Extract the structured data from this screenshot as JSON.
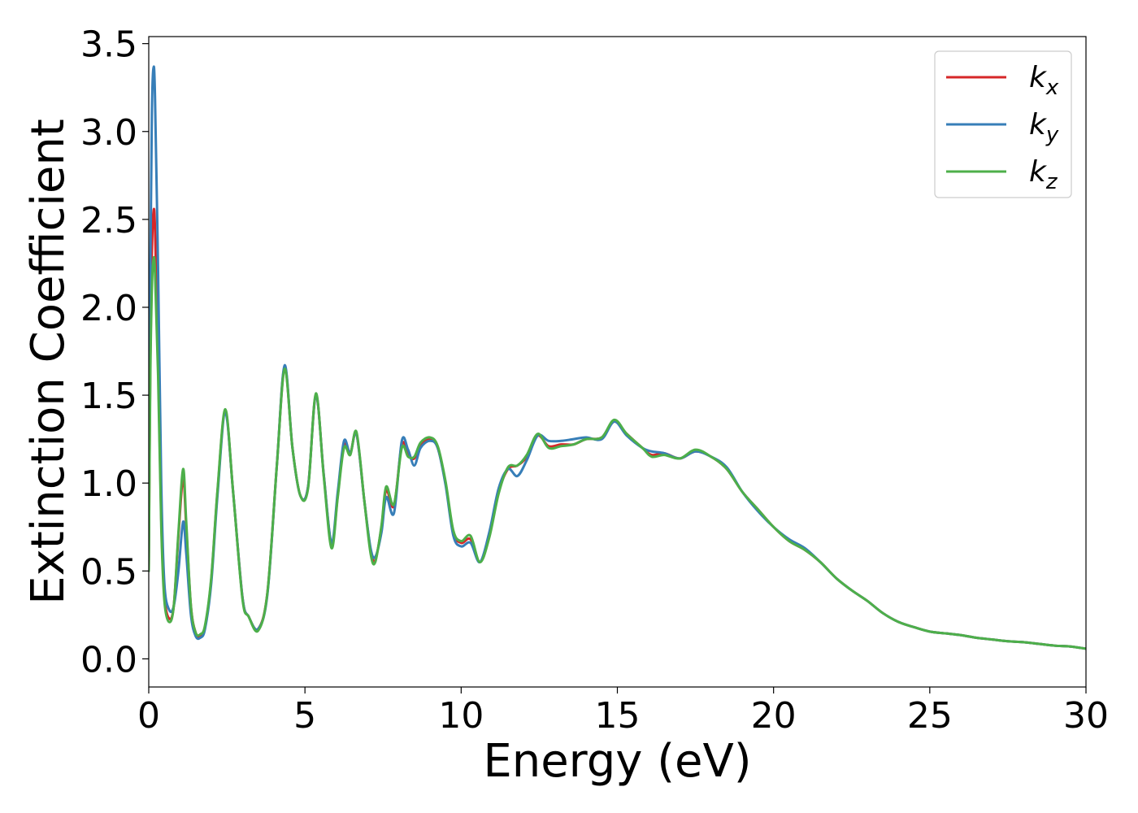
{
  "chart_data": {
    "type": "line",
    "title": "",
    "xlabel": "Energy (eV)",
    "ylabel": "Extinction Coefficient",
    "xlim": [
      0,
      30
    ],
    "ylim": [
      -0.16,
      3.54
    ],
    "xticks": [
      0,
      5,
      10,
      15,
      20,
      25,
      30
    ],
    "xtick_labels": [
      "0",
      "5",
      "10",
      "15",
      "20",
      "25",
      "30"
    ],
    "yticks": [
      0.0,
      0.5,
      1.0,
      1.5,
      2.0,
      2.5,
      3.0,
      3.5
    ],
    "ytick_labels": [
      "0.0",
      "0.5",
      "1.0",
      "1.5",
      "2.0",
      "2.5",
      "3.0",
      "3.5"
    ],
    "grid": false,
    "legend_position": "top-right",
    "x": [
      0.0,
      0.05,
      0.1,
      0.15,
      0.2,
      0.3,
      0.4,
      0.5,
      0.65,
      0.8,
      0.95,
      1.1,
      1.2,
      1.35,
      1.5,
      1.65,
      1.8,
      2.0,
      2.2,
      2.45,
      2.7,
      3.0,
      3.2,
      3.5,
      3.8,
      4.1,
      4.35,
      4.6,
      4.85,
      5.1,
      5.35,
      5.6,
      5.85,
      6.05,
      6.25,
      6.45,
      6.65,
      6.9,
      7.1,
      7.25,
      7.45,
      7.6,
      7.85,
      8.1,
      8.3,
      8.5,
      8.7,
      9.0,
      9.25,
      9.5,
      9.75,
      10.0,
      10.3,
      10.6,
      10.9,
      11.2,
      11.5,
      11.8,
      12.1,
      12.45,
      12.8,
      13.2,
      13.6,
      14.0,
      14.5,
      14.9,
      15.3,
      15.8,
      16.1,
      16.5,
      17.0,
      17.5,
      18.0,
      18.5,
      19.0,
      19.5,
      20.0,
      20.5,
      21.0,
      21.5,
      22.0,
      22.5,
      23.0,
      23.5,
      24.0,
      24.5,
      25.0,
      25.5,
      26.0,
      26.5,
      27.0,
      27.5,
      28.0,
      28.5,
      29.0,
      29.5,
      30.0
    ],
    "series": [
      {
        "name": "k_x",
        "label_main": "k",
        "label_sub": "x",
        "color": "#d62728",
        "values": [
          0.5,
          1.7,
          2.3,
          2.54,
          2.45,
          1.7,
          0.8,
          0.36,
          0.23,
          0.3,
          0.7,
          1.03,
          0.75,
          0.3,
          0.15,
          0.13,
          0.18,
          0.45,
          0.95,
          1.41,
          0.95,
          0.35,
          0.24,
          0.17,
          0.38,
          1.1,
          1.66,
          1.2,
          0.93,
          0.98,
          1.5,
          1.05,
          0.65,
          0.93,
          1.22,
          1.17,
          1.28,
          0.9,
          0.62,
          0.56,
          0.75,
          0.96,
          0.87,
          1.22,
          1.16,
          1.14,
          1.22,
          1.25,
          1.2,
          1.0,
          0.72,
          0.66,
          0.68,
          0.55,
          0.7,
          0.95,
          1.08,
          1.1,
          1.15,
          1.27,
          1.21,
          1.22,
          1.22,
          1.25,
          1.26,
          1.35,
          1.28,
          1.2,
          1.16,
          1.17,
          1.14,
          1.18,
          1.15,
          1.08,
          0.95,
          0.85,
          0.75,
          0.67,
          0.62,
          0.55,
          0.46,
          0.39,
          0.33,
          0.26,
          0.21,
          0.18,
          0.155,
          0.145,
          0.135,
          0.12,
          0.11,
          0.1,
          0.095,
          0.085,
          0.075,
          0.07,
          0.058
        ]
      },
      {
        "name": "k_y",
        "label_main": "k",
        "label_sub": "y",
        "color": "#377eb8",
        "values": [
          0.5,
          2.2,
          3.1,
          3.36,
          3.2,
          2.2,
          1.0,
          0.43,
          0.28,
          0.3,
          0.5,
          0.78,
          0.6,
          0.25,
          0.13,
          0.12,
          0.17,
          0.43,
          0.93,
          1.4,
          0.95,
          0.35,
          0.24,
          0.17,
          0.37,
          1.1,
          1.67,
          1.2,
          0.93,
          0.98,
          1.5,
          1.05,
          0.66,
          0.95,
          1.24,
          1.17,
          1.28,
          0.9,
          0.63,
          0.58,
          0.72,
          0.92,
          0.83,
          1.24,
          1.19,
          1.1,
          1.2,
          1.24,
          1.2,
          0.99,
          0.7,
          0.64,
          0.66,
          0.55,
          0.72,
          0.97,
          1.08,
          1.04,
          1.13,
          1.27,
          1.24,
          1.24,
          1.25,
          1.26,
          1.25,
          1.35,
          1.27,
          1.2,
          1.18,
          1.17,
          1.14,
          1.18,
          1.15,
          1.09,
          0.95,
          0.84,
          0.75,
          0.68,
          0.63,
          0.55,
          0.46,
          0.39,
          0.33,
          0.26,
          0.21,
          0.18,
          0.155,
          0.145,
          0.135,
          0.12,
          0.11,
          0.1,
          0.095,
          0.085,
          0.075,
          0.07,
          0.058
        ]
      },
      {
        "name": "k_z",
        "label_main": "k",
        "label_sub": "z",
        "color": "#4daf4a",
        "values": [
          0.5,
          1.6,
          2.1,
          2.27,
          2.2,
          1.6,
          0.75,
          0.33,
          0.21,
          0.3,
          0.72,
          1.08,
          0.78,
          0.3,
          0.15,
          0.14,
          0.19,
          0.46,
          0.96,
          1.42,
          0.95,
          0.34,
          0.24,
          0.16,
          0.38,
          1.1,
          1.65,
          1.2,
          0.93,
          0.97,
          1.51,
          1.04,
          0.63,
          0.92,
          1.2,
          1.16,
          1.29,
          0.9,
          0.6,
          0.55,
          0.76,
          0.98,
          0.88,
          1.2,
          1.15,
          1.15,
          1.23,
          1.26,
          1.21,
          1.01,
          0.73,
          0.67,
          0.7,
          0.55,
          0.69,
          0.94,
          1.09,
          1.1,
          1.16,
          1.28,
          1.2,
          1.21,
          1.22,
          1.25,
          1.26,
          1.36,
          1.28,
          1.2,
          1.15,
          1.16,
          1.14,
          1.19,
          1.15,
          1.08,
          0.95,
          0.85,
          0.75,
          0.67,
          0.62,
          0.55,
          0.46,
          0.39,
          0.33,
          0.26,
          0.21,
          0.18,
          0.155,
          0.145,
          0.135,
          0.12,
          0.11,
          0.1,
          0.095,
          0.085,
          0.075,
          0.07,
          0.058
        ]
      }
    ]
  }
}
